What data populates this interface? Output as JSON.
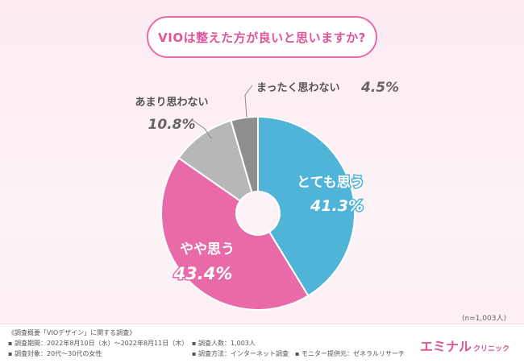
{
  "title": "VIOは整えた方が良いと思いますか?",
  "sample_note": "(n=1,003人)",
  "colors": {
    "accent": "#e05598",
    "pink": "#e96aa8",
    "blue": "#4fb4d8",
    "light_gray": "#b7b7b7",
    "dark_gray": "#8e8e8e"
  },
  "chart_data": {
    "type": "pie",
    "donut": true,
    "slices": [
      {
        "label": "とても思う",
        "value": 41.3,
        "display": "41.3%",
        "color": "#4fb4d8"
      },
      {
        "label": "やや思う",
        "value": 43.4,
        "display": "43.4%",
        "color": "#e96aa8"
      },
      {
        "label": "あまり思わない",
        "value": 10.8,
        "display": "10.8%",
        "color": "#b7b7b7"
      },
      {
        "label": "まったく思わない",
        "value": 4.5,
        "display": "4.5%",
        "color": "#8e8e8e"
      }
    ]
  },
  "footer": {
    "summary_title": "《調査概要「VIOデザイン」に関する調査》",
    "period": "調査期間：2022年8月10日（水）〜2022年8月11日（木）",
    "target": "調査対象：20代〜30代の女性",
    "count": "調査人数：1,003人",
    "method": "調査方法：インターネット調査",
    "provider": "モニター提供元：ゼネラルリサーチ",
    "bullet": "▪"
  },
  "brand": {
    "name": "エミナル",
    "sub": "クリニック"
  }
}
